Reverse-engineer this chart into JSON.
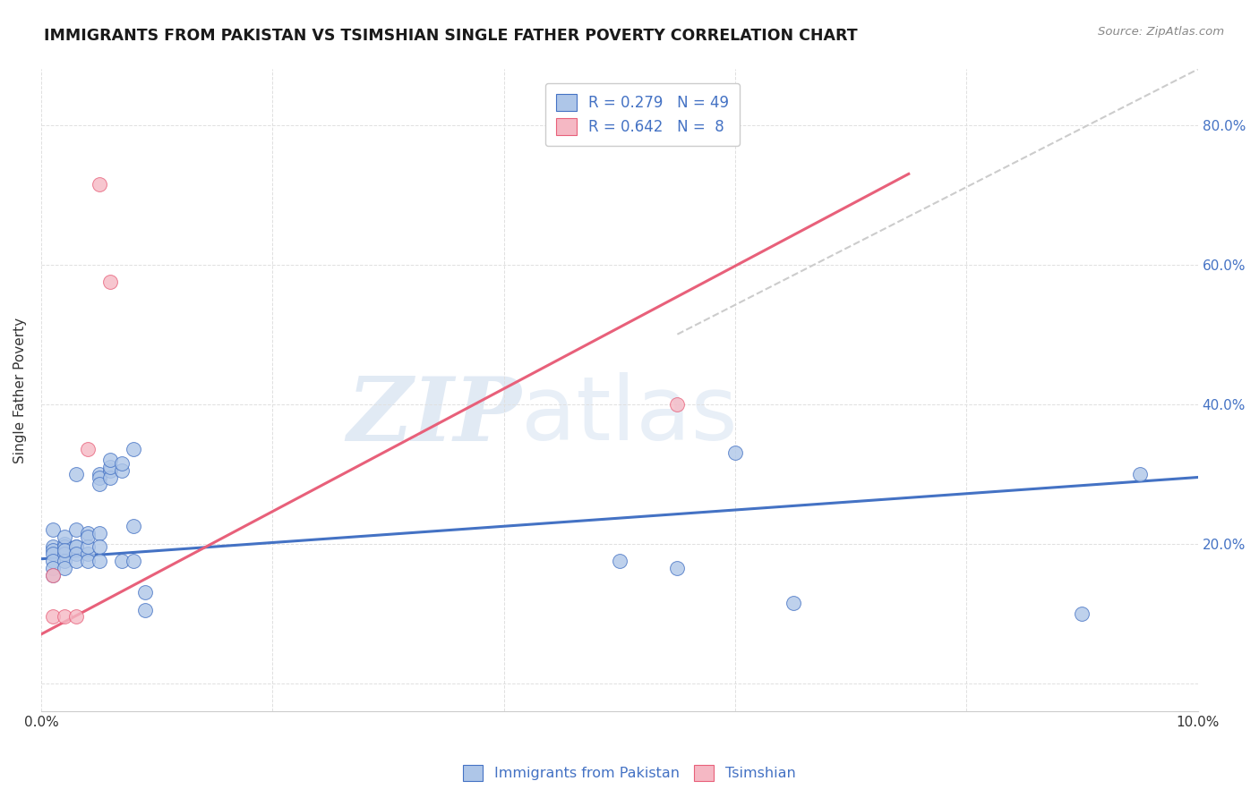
{
  "title": "IMMIGRANTS FROM PAKISTAN VS TSIMSHIAN SINGLE FATHER POVERTY CORRELATION CHART",
  "source": "Source: ZipAtlas.com",
  "xlabel_label": "Immigrants from Pakistan",
  "ylabel_label": "Single Father Poverty",
  "xlim": [
    0.0,
    0.1
  ],
  "ylim": [
    -0.04,
    0.88
  ],
  "blue_R": "0.279",
  "blue_N": "49",
  "pink_R": "0.642",
  "pink_N": "8",
  "blue_color": "#aec6e8",
  "pink_color": "#f5b8c4",
  "blue_line_color": "#4472c4",
  "pink_line_color": "#e8607a",
  "legend_label_color": "#4472c4",
  "watermark_zip": "ZIP",
  "watermark_atlas": "atlas",
  "blue_scatter_x": [
    0.001,
    0.001,
    0.001,
    0.001,
    0.001,
    0.001,
    0.001,
    0.002,
    0.002,
    0.002,
    0.002,
    0.002,
    0.002,
    0.002,
    0.003,
    0.003,
    0.003,
    0.003,
    0.003,
    0.003,
    0.004,
    0.004,
    0.004,
    0.004,
    0.004,
    0.005,
    0.005,
    0.005,
    0.005,
    0.005,
    0.005,
    0.006,
    0.006,
    0.006,
    0.006,
    0.007,
    0.007,
    0.007,
    0.008,
    0.008,
    0.008,
    0.009,
    0.009,
    0.05,
    0.055,
    0.06,
    0.065,
    0.09,
    0.095
  ],
  "blue_scatter_y": [
    0.195,
    0.19,
    0.185,
    0.175,
    0.165,
    0.155,
    0.22,
    0.2,
    0.195,
    0.185,
    0.175,
    0.165,
    0.21,
    0.19,
    0.195,
    0.22,
    0.3,
    0.195,
    0.185,
    0.175,
    0.185,
    0.215,
    0.195,
    0.21,
    0.175,
    0.215,
    0.3,
    0.295,
    0.285,
    0.195,
    0.175,
    0.305,
    0.295,
    0.31,
    0.32,
    0.305,
    0.315,
    0.175,
    0.335,
    0.225,
    0.175,
    0.13,
    0.105,
    0.175,
    0.165,
    0.33,
    0.115,
    0.1,
    0.3
  ],
  "pink_scatter_x": [
    0.001,
    0.001,
    0.002,
    0.003,
    0.004,
    0.005,
    0.006,
    0.055
  ],
  "pink_scatter_y": [
    0.155,
    0.095,
    0.095,
    0.095,
    0.335,
    0.715,
    0.575,
    0.4
  ],
  "ref_line_x": [
    0.055,
    0.1
  ],
  "ref_line_y": [
    0.5,
    0.88
  ],
  "blue_trend_x": [
    0.0,
    0.1
  ],
  "blue_trend_y": [
    0.178,
    0.295
  ],
  "pink_trend_x": [
    0.0,
    0.075
  ],
  "pink_trend_y": [
    0.07,
    0.73
  ]
}
